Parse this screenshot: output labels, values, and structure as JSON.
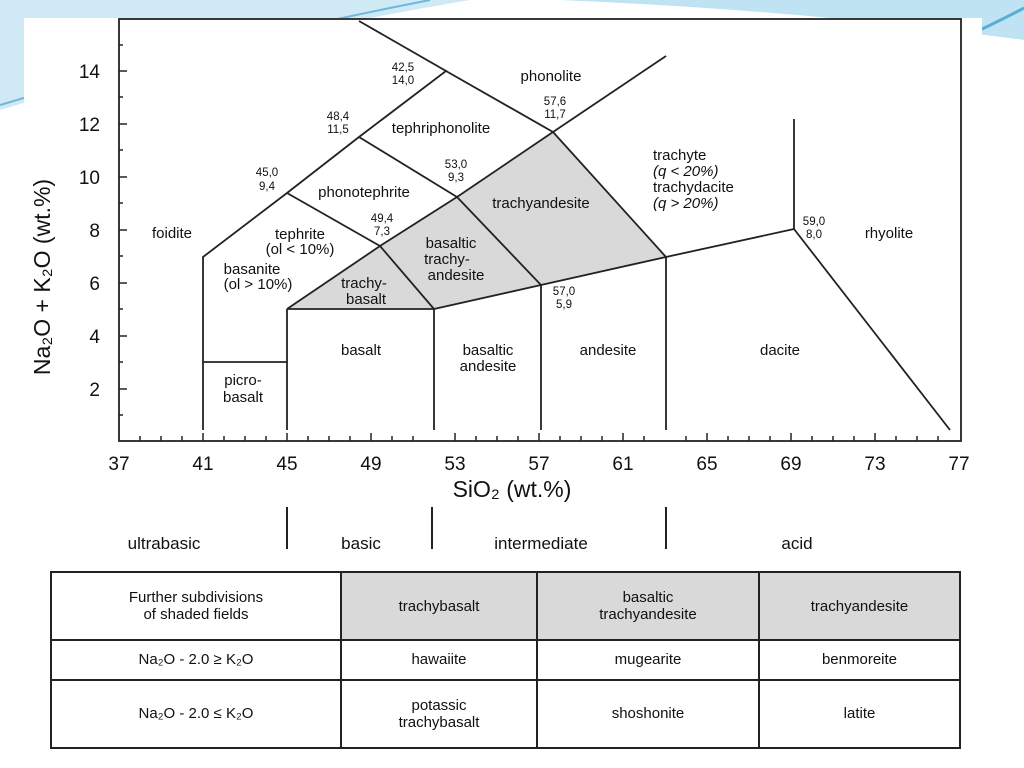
{
  "colors": {
    "shade": "#d9d9d9",
    "line": "#222222",
    "accent_left": "#7fc4e0",
    "accent_right": "#5aaed4"
  },
  "y_axis": {
    "ticks": [
      "2",
      "4",
      "6",
      "8",
      "10",
      "12",
      "14"
    ],
    "title": "Na₂O + K₂O (wt.%)"
  },
  "x_axis": {
    "ticks": [
      "37",
      "41",
      "45",
      "49",
      "53",
      "57",
      "61",
      "65",
      "69",
      "73",
      "77"
    ],
    "title": "SiO₂ (wt.%)"
  },
  "fields": {
    "foidite": "foidite",
    "phonolite": "phonolite",
    "tephriphonolite": "tephriphonolite",
    "phonotephrite": "phonotephrite",
    "trachyandesite": "trachyandesite",
    "trachyte_1": "trachyte",
    "trachyte_2": "(q < 20%)",
    "trachyte_3": "trachydacite",
    "trachyte_4": "(q > 20%)",
    "tephrite_1": "tephrite",
    "tephrite_2": "(ol < 10%)",
    "basanite_1": "basanite",
    "basanite_2": "(ol > 10%)",
    "bta_1": "basaltic",
    "bta_2": "trachy-",
    "bta_3": "andesite",
    "tb_1": "trachy-",
    "tb_2": "basalt",
    "rhyolite": "rhyolite",
    "basalt": "basalt",
    "basaltic_andesite_1": "basaltic",
    "basaltic_andesite_2": "andesite",
    "andesite": "andesite",
    "dacite": "dacite",
    "picrobasalt_1": "picro-",
    "picrobasalt_2": "basalt"
  },
  "points": [
    {
      "a": "42,5",
      "b": "14,0"
    },
    {
      "a": "48,4",
      "b": "11,5"
    },
    {
      "a": "45,0",
      "b": "9,4"
    },
    {
      "a": "53,0",
      "b": "9,3"
    },
    {
      "a": "49,4",
      "b": "7,3"
    },
    {
      "a": "57,6",
      "b": "11,7"
    },
    {
      "a": "57,0",
      "b": "5,9"
    },
    {
      "a": "59,0",
      "b": "8,0"
    }
  ],
  "classes": {
    "ultrabasic": "ultrabasic",
    "basic": "basic",
    "intermediate": "intermediate",
    "acid": "acid"
  },
  "table": {
    "header": {
      "label_1": "Further subdivisions",
      "label_2": "of shaded fields",
      "col1": "trachybasalt",
      "col2_1": "basaltic",
      "col2_2": "trachyandesite",
      "col3": "trachyandesite"
    },
    "row1": {
      "label": "Na₂O - 2.0 ≥ K₂O",
      "col1": "hawaiite",
      "col2": "mugearite",
      "col3": "benmoreite"
    },
    "row2": {
      "label": "Na₂O - 2.0 ≤ K₂O",
      "col1_1": "potassic",
      "col1_2": "trachybasalt",
      "col2": "shoshonite",
      "col3": "latite"
    }
  }
}
